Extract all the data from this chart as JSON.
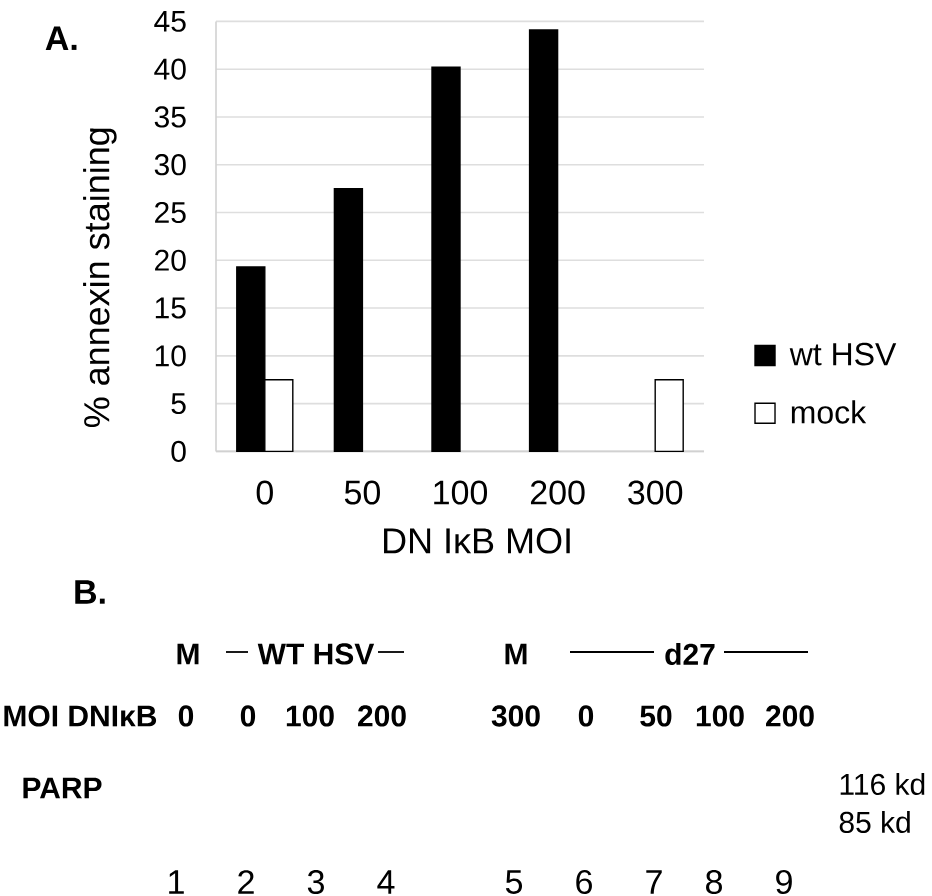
{
  "chart_data": [
    {
      "type": "bar",
      "title": "A.",
      "xlabel": "DN IκB MOI",
      "ylabel": "% annexin staining",
      "categories": [
        "0",
        "50",
        "100",
        "200",
        "300"
      ],
      "series": [
        {
          "name": "wt HSV",
          "color": "#000000",
          "values": [
            19.3,
            27.5,
            40.2,
            44.1,
            null
          ]
        },
        {
          "name": "mock",
          "color": "#ffffff",
          "values": [
            7.5,
            null,
            null,
            null,
            7.5
          ]
        }
      ],
      "ylim": [
        0,
        45
      ],
      "yticks": [
        0,
        5,
        10,
        15,
        20,
        25,
        30,
        35,
        40,
        45
      ],
      "grid": "y",
      "legend": "right"
    },
    {
      "type": "other",
      "title": "B.",
      "categories": [
        "1",
        "2",
        "3",
        "4",
        "5",
        "6",
        "7",
        "8",
        "9"
      ],
      "annotations": [
        "M",
        "WT HSV",
        "M",
        "d27",
        "MOI DNIκB",
        "0",
        "0",
        "100",
        "200",
        "300",
        "0",
        "50",
        "100",
        "200",
        "PARP",
        "116 kd",
        "85 kd"
      ]
    }
  ]
}
